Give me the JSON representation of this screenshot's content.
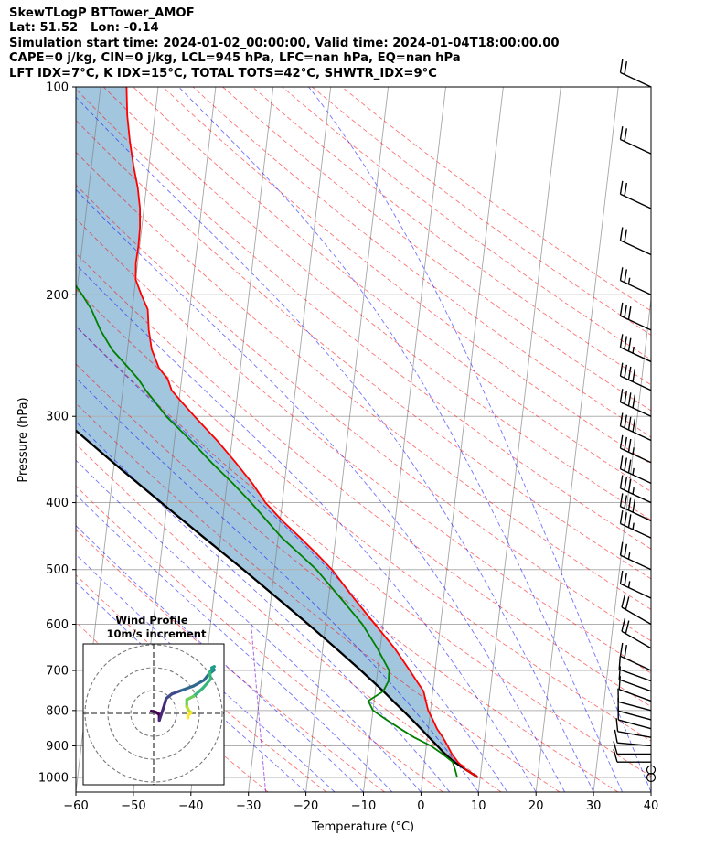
{
  "header": {
    "line1": "SkewTLogP BTTower_AMOF",
    "line2": "Lat: 51.52   Lon: -0.14",
    "line3": "Simulation start time: 2024-01-02_00:00:00, Valid time: 2024-01-04T18:00:00.00",
    "line4": "CAPE=0 j/kg, CIN=0 j/kg, LCL=945 hPa, LFC=nan hPa, EQ=nan hPa",
    "line5": "LFT IDX=7°C, K IDX=15°C, TOTAL TOTS=42°C, SHWTR_IDX=9°C"
  },
  "colors": {
    "temperature": "#ff0000",
    "dewpoint": "#008000",
    "parcel": "#000000",
    "fill": "#a2c6de",
    "dry_adiabat": "#ff0000",
    "moist_adiabat": "#0000ff",
    "mixing_ratio": "#8a2be2",
    "isotherm": "#808080",
    "grid": "#b0b0b0"
  },
  "chart_data": [
    {
      "type": "line",
      "subtype": "skewT-logP",
      "xlabel": "Temperature (°C)",
      "ylabel": "Pressure (hPa)",
      "xlim": [
        -60,
        40
      ],
      "ylim": [
        1050,
        100
      ],
      "y_scale": "log",
      "x_ticks": [
        "−60",
        "−50",
        "−40",
        "−30",
        "−20",
        "−10",
        "0",
        "10",
        "20",
        "30",
        "40"
      ],
      "x_tick_values": [
        -60,
        -50,
        -40,
        -30,
        -20,
        -10,
        0,
        10,
        20,
        30,
        40
      ],
      "y_ticks": [
        "1000",
        "900",
        "800",
        "700",
        "600",
        "500",
        "400",
        "300",
        "200",
        "100"
      ],
      "y_tick_values": [
        1000,
        900,
        800,
        700,
        600,
        500,
        400,
        300,
        200,
        100
      ],
      "grid": true,
      "series": [
        {
          "role": "temperature",
          "points": [
            [
              1000,
              9.6
            ],
            [
              975,
              7.4
            ],
            [
              950,
              5.8
            ],
            [
              925,
              4.6
            ],
            [
              900,
              3.7
            ],
            [
              875,
              2.7
            ],
            [
              850,
              1.5
            ],
            [
              825,
              0.6
            ],
            [
              800,
              -0.4
            ],
            [
              775,
              -1.0
            ],
            [
              750,
              -1.6
            ],
            [
              725,
              -3.0
            ],
            [
              700,
              -4.4
            ],
            [
              650,
              -7.5
            ],
            [
              600,
              -11.4
            ],
            [
              550,
              -15.6
            ],
            [
              500,
              -20.0
            ],
            [
              475,
              -22.9
            ],
            [
              450,
              -26.1
            ],
            [
              425,
              -29.6
            ],
            [
              400,
              -32.9
            ],
            [
              375,
              -35.6
            ],
            [
              350,
              -38.9
            ],
            [
              325,
              -42.6
            ],
            [
              300,
              -47.0
            ],
            [
              285,
              -49.7
            ],
            [
              275,
              -51.5
            ],
            [
              265,
              -52.4
            ],
            [
              255,
              -54.2
            ],
            [
              240,
              -55.8
            ],
            [
              225,
              -56.7
            ],
            [
              210,
              -57.3
            ],
            [
              200,
              -58.7
            ],
            [
              190,
              -60.0
            ],
            [
              180,
              -60.3
            ],
            [
              170,
              -60.2
            ],
            [
              160,
              -60.3
            ],
            [
              150,
              -60.7
            ],
            [
              140,
              -61.5
            ],
            [
              130,
              -62.7
            ],
            [
              120,
              -63.8
            ],
            [
              110,
              -64.8
            ],
            [
              100,
              -65.5
            ]
          ]
        },
        {
          "role": "dewpoint",
          "points": [
            [
              1000,
              6.0
            ],
            [
              975,
              5.5
            ],
            [
              950,
              4.9
            ],
            [
              925,
              3.0
            ],
            [
              900,
              0.8
            ],
            [
              875,
              -2.3
            ],
            [
              850,
              -4.9
            ],
            [
              825,
              -7.5
            ],
            [
              800,
              -10.0
            ],
            [
              775,
              -11.0
            ],
            [
              750,
              -8.6
            ],
            [
              725,
              -7.9
            ],
            [
              700,
              -8.0
            ],
            [
              650,
              -10.5
            ],
            [
              600,
              -13.6
            ],
            [
              550,
              -17.9
            ],
            [
              500,
              -22.7
            ],
            [
              475,
              -25.9
            ],
            [
              450,
              -29.3
            ],
            [
              425,
              -32.3
            ],
            [
              400,
              -35.4
            ],
            [
              375,
              -39.0
            ],
            [
              350,
              -43.1
            ],
            [
              325,
              -47.2
            ],
            [
              300,
              -51.9
            ],
            [
              285,
              -54.3
            ],
            [
              275,
              -56.0
            ],
            [
              265,
              -57.5
            ],
            [
              255,
              -59.5
            ],
            [
              240,
              -62.7
            ],
            [
              225,
              -65.1
            ],
            [
              210,
              -67.1
            ],
            [
              200,
              -69.0
            ],
            [
              190,
              -71.2
            ],
            [
              180,
              -73.4
            ],
            [
              170,
              -75.4
            ],
            [
              160,
              -77.6
            ],
            [
              150,
              -79.6
            ],
            [
              140,
              -81.7
            ],
            [
              130,
              -83.8
            ],
            [
              120,
              -86.0
            ],
            [
              110,
              -88.1
            ],
            [
              100,
              -90.4
            ]
          ]
        },
        {
          "role": "parcel",
          "points": [
            [
              1000,
              9.6
            ],
            [
              975,
              7.4
            ],
            [
              950,
              5.2
            ],
            [
              925,
              3.4
            ],
            [
              900,
              1.9
            ],
            [
              875,
              0.3
            ],
            [
              850,
              -1.3
            ],
            [
              825,
              -3.0
            ],
            [
              800,
              -4.8
            ],
            [
              775,
              -6.7
            ],
            [
              750,
              -8.6
            ],
            [
              725,
              -10.7
            ],
            [
              700,
              -12.9
            ],
            [
              650,
              -17.7
            ],
            [
              600,
              -23.0
            ],
            [
              550,
              -28.9
            ],
            [
              500,
              -35.4
            ],
            [
              450,
              -42.8
            ],
            [
              400,
              -51.0
            ],
            [
              350,
              -60.2
            ],
            [
              300,
              -70.5
            ],
            [
              250,
              -82.5
            ],
            [
              200,
              -96.5
            ],
            [
              150,
              -113.0
            ],
            [
              100,
              -134.0
            ]
          ]
        }
      ],
      "wind_barbs": {
        "pressures": [
          100,
          125,
          150,
          175,
          200,
          225,
          250,
          275,
          300,
          325,
          350,
          375,
          400,
          425,
          450,
          500,
          550,
          600,
          650,
          700,
          725,
          750,
          775,
          800,
          825,
          850,
          875,
          900,
          925,
          950,
          975,
          1000
        ],
        "direction_deg": [
          295,
          295,
          295,
          295,
          295,
          295,
          295,
          295,
          295,
          295,
          295,
          295,
          295,
          295,
          295,
          295,
          295,
          300,
          300,
          295,
          290,
          290,
          290,
          285,
          285,
          285,
          280,
          275,
          270,
          270,
          0,
          0
        ],
        "speed_kt": [
          20,
          20,
          20,
          20,
          25,
          30,
          35,
          40,
          40,
          40,
          35,
          35,
          35,
          40,
          35,
          25,
          25,
          20,
          20,
          20,
          10,
          10,
          10,
          10,
          10,
          10,
          10,
          10,
          10,
          10,
          0,
          0
        ]
      }
    },
    {
      "type": "line",
      "subtype": "hodograph",
      "title": "Wind Profile",
      "subtitle": "10m/s increment",
      "grid": true,
      "ring_step_ms": 10,
      "rings": 3,
      "colormap": "viridis",
      "points_uv_ms": [
        [
          -1,
          1
        ],
        [
          1,
          0.5
        ],
        [
          2.5,
          -0.5
        ],
        [
          2.5,
          -3
        ],
        [
          4.5,
          3
        ],
        [
          5.5,
          6.5
        ],
        [
          8,
          8.5
        ],
        [
          12,
          10
        ],
        [
          17.5,
          12
        ],
        [
          22,
          14.5
        ],
        [
          24,
          17
        ],
        [
          26.5,
          19
        ],
        [
          25.5,
          20
        ],
        [
          26.5,
          20.5
        ],
        [
          24.5,
          18
        ],
        [
          25,
          15
        ],
        [
          21.5,
          11
        ],
        [
          17.5,
          7.5
        ],
        [
          14.5,
          6
        ],
        [
          14.5,
          3
        ],
        [
          15.5,
          1
        ],
        [
          16.5,
          0.5
        ],
        [
          15,
          -1
        ],
        [
          15,
          -2
        ]
      ]
    }
  ]
}
